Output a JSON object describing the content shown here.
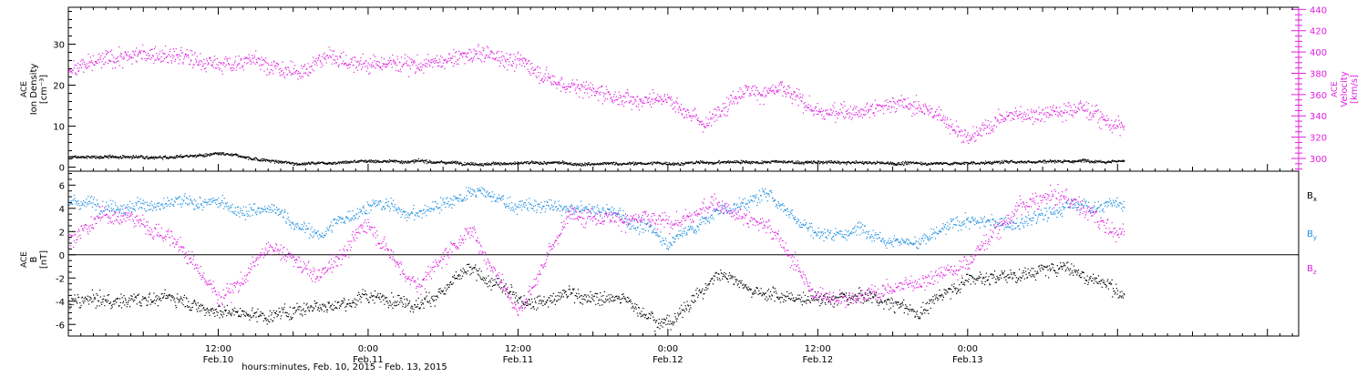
{
  "colors": {
    "density": "#000000",
    "velocity": "#e020e0",
    "bx": "#000000",
    "by": "#1e8fe0",
    "bz": "#e020e0",
    "frame": "#000000"
  },
  "x_axis": {
    "xlabel": "hours:minutes, Feb. 10, 2015 - Feb. 13, 2015",
    "range_hours": [
      0,
      98.5
    ],
    "data_end_hours": 84.5,
    "ticks": [
      {
        "hour": 12,
        "time": "12:00",
        "date": "Feb.10"
      },
      {
        "hour": 24,
        "time": "0:00",
        "date": "Feb.11"
      },
      {
        "hour": 36,
        "time": "12:00",
        "date": "Feb.11"
      },
      {
        "hour": 48,
        "time": "0:00",
        "date": "Feb.12"
      },
      {
        "hour": 60,
        "time": "12:00",
        "date": "Feb.12"
      },
      {
        "hour": 72,
        "time": "0:00",
        "date": "Feb.13"
      }
    ]
  },
  "chart_data": [
    {
      "type": "scatter",
      "panel": "top",
      "ylabel_left": [
        "ACE",
        "Ion Density",
        "[cm⁻³]"
      ],
      "ylabel_right": [
        "ACE",
        "Velocity",
        "[km/s]"
      ],
      "left_axis": {
        "ylim": [
          -1,
          39
        ],
        "ticks": [
          "0",
          "10",
          "20",
          "30"
        ],
        "tick_values": [
          0,
          10,
          20,
          30
        ]
      },
      "right_axis": {
        "ylim": [
          288,
          442
        ],
        "ticks": [
          "300",
          "320",
          "340",
          "360",
          "380",
          "400",
          "420",
          "440"
        ],
        "tick_values": [
          300,
          320,
          340,
          360,
          380,
          400,
          420,
          440
        ]
      },
      "series": [
        {
          "name": "",
          "axis": "left",
          "x": [
            0,
            6,
            12,
            18,
            24,
            30,
            36,
            42,
            48,
            54,
            60,
            66,
            72,
            78,
            84
          ],
          "y": [
            2.5,
            2.6,
            3.2,
            0.9,
            1.8,
            1.3,
            1.1,
            0.8,
            1.0,
            1.4,
            1.2,
            1.0,
            1.1,
            1.6,
            1.9
          ]
        },
        {
          "name": "",
          "axis": "right",
          "x": [
            0,
            3,
            6,
            9,
            12,
            15,
            18,
            21,
            24,
            27,
            30,
            33,
            36,
            39,
            42,
            45,
            48,
            51,
            54,
            57,
            60,
            63,
            66,
            69,
            72,
            75,
            78,
            81,
            84
          ],
          "y": [
            385,
            392,
            398,
            395,
            386,
            395,
            378,
            398,
            388,
            392,
            390,
            398,
            393,
            375,
            365,
            356,
            362,
            333,
            368,
            366,
            343,
            345,
            355,
            347,
            322,
            342,
            345,
            352,
            332
          ]
        }
      ]
    },
    {
      "type": "scatter",
      "panel": "bottom",
      "ylabel_left": [
        "ACE",
        "B",
        "[nT]"
      ],
      "ylim": [
        -7,
        7.2
      ],
      "yticks": [
        "-6",
        "-4",
        "-2",
        "0",
        "2",
        "4",
        "6"
      ],
      "ytick_values": [
        -6,
        -4,
        -2,
        0,
        2,
        4,
        6
      ],
      "zero_line": true,
      "series": [
        {
          "name": "Bx",
          "label_main": "B",
          "label_sub": "x",
          "x": [
            0,
            4,
            8,
            12,
            16,
            20,
            24,
            28,
            32,
            36,
            40,
            44,
            48,
            52,
            56,
            60,
            64,
            68,
            72,
            76,
            80,
            84
          ],
          "y": [
            -4.2,
            -4.0,
            -3.5,
            -4.5,
            -5.0,
            -4.0,
            -3.5,
            -3.8,
            -1.5,
            -4.0,
            -3.0,
            -3.8,
            -5.5,
            -1.5,
            -3.0,
            -4.0,
            -3.5,
            -5.0,
            -2.0,
            -1.5,
            -1.0,
            -3.0
          ]
        },
        {
          "name": "By",
          "label_main": "B",
          "label_sub": "y",
          "x": [
            0,
            4,
            8,
            12,
            16,
            20,
            24,
            28,
            32,
            36,
            40,
            44,
            48,
            52,
            56,
            60,
            64,
            68,
            72,
            76,
            80,
            84
          ],
          "y": [
            4.3,
            4.8,
            4.5,
            4.0,
            3.8,
            1.5,
            4.5,
            3.5,
            5.5,
            4.2,
            3.8,
            3.5,
            1.2,
            3.8,
            5.2,
            2.0,
            2.5,
            1.5,
            3.0,
            2.5,
            4.0,
            4.5
          ]
        },
        {
          "name": "Bz",
          "label_main": "B",
          "label_sub": "z",
          "x": [
            0,
            4,
            8,
            12,
            16,
            20,
            24,
            28,
            32,
            36,
            40,
            44,
            48,
            52,
            56,
            60,
            64,
            68,
            72,
            76,
            80,
            84
          ],
          "y": [
            1.5,
            3.5,
            2.0,
            -3.5,
            0.5,
            -2.0,
            3.0,
            -2.5,
            2.5,
            -4.0,
            3.5,
            4.0,
            2.5,
            4.5,
            3.0,
            -3.5,
            -3.0,
            -2.0,
            0.0,
            4.5,
            5.0,
            2.0
          ]
        }
      ]
    }
  ]
}
